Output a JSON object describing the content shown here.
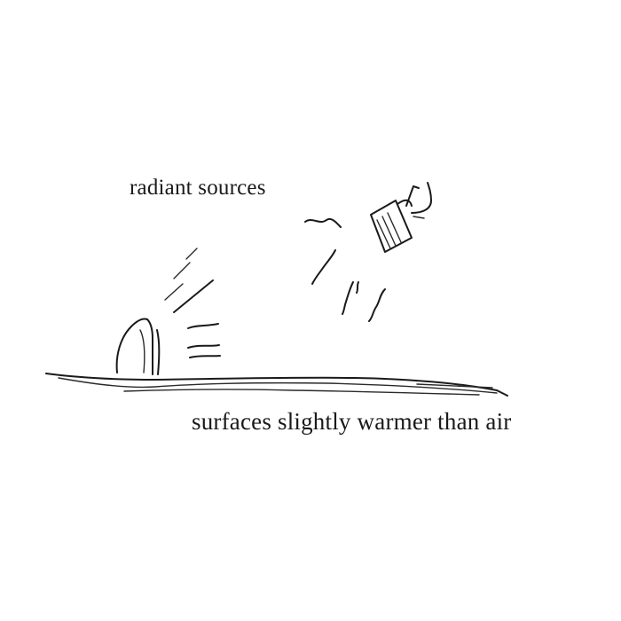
{
  "labels": {
    "radiant_sources": "radiant sources",
    "surfaces": "surfaces slightly warmer than air"
  },
  "colors": {
    "ink": "#1a1a1a",
    "background": "#ffffff"
  }
}
